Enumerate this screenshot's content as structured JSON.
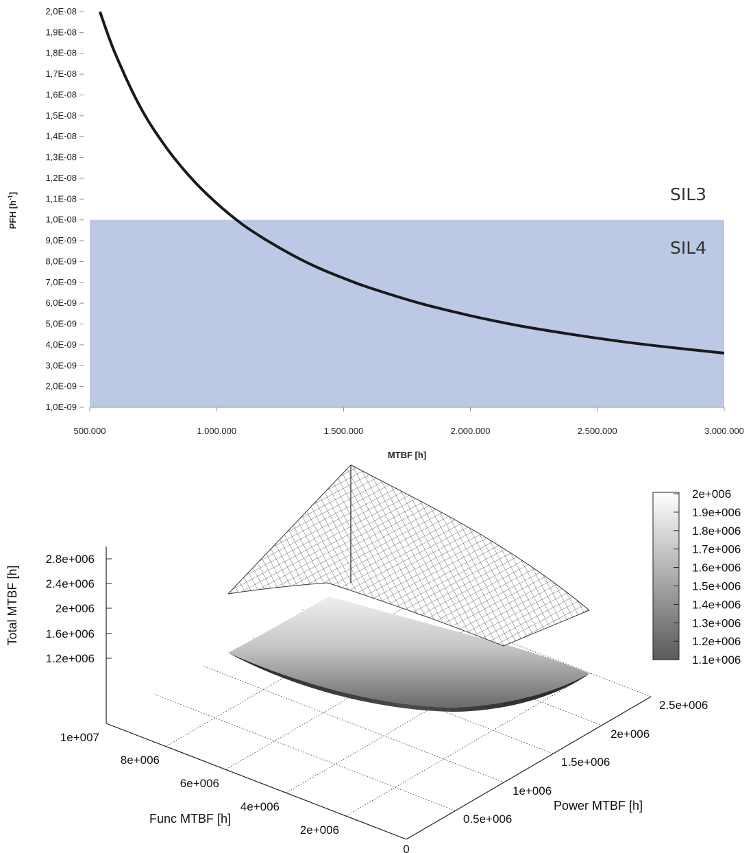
{
  "chart_data": [
    {
      "type": "line",
      "xlabel": "MTBF [h]",
      "ylabel": "PFH [h",
      "ylabel_sup": "-1",
      "ylabel_close": "]",
      "xlim": [
        500000,
        3000000
      ],
      "ylim": [
        1e-09,
        2e-08
      ],
      "x_tick_values": [
        500000,
        1000000,
        1500000,
        2000000,
        2500000,
        3000000
      ],
      "x_tick_labels": [
        "500.000",
        "1.000.000",
        "1.500.000",
        "2.000.000",
        "2.500.000",
        "3.000.000"
      ],
      "y_tick_values": [
        1e-09,
        2e-09,
        3e-09,
        4e-09,
        5e-09,
        6e-09,
        7e-09,
        8e-09,
        9e-09,
        1e-08,
        1.1e-08,
        1.2e-08,
        1.3e-08,
        1.4e-08,
        1.5e-08,
        1.6e-08,
        1.7e-08,
        1.8e-08,
        1.9e-08,
        2e-08
      ],
      "y_tick_labels": [
        "1,0E-09",
        "2,0E-09",
        "3,0E-09",
        "4,0E-09",
        "5,0E-09",
        "6,0E-09",
        "7,0E-09",
        "8,0E-09",
        "9,0E-09",
        "1,0E-08",
        "1,1E-08",
        "1,2E-08",
        "1,3E-08",
        "1,4E-08",
        "1,5E-08",
        "1,6E-08",
        "1,7E-08",
        "1,8E-08",
        "1,9E-08",
        "2,0E-08"
      ],
      "series": [
        {
          "x": [
            540000,
            600000,
            700000,
            800000,
            900000,
            1000000,
            1100000,
            1200000,
            1300000,
            1400000,
            1500000,
            1600000,
            1800000,
            2000000,
            2200000,
            2400000,
            2600000,
            2800000,
            3000000
          ],
          "values": [
            2e-08,
            1.8e-08,
            1.54e-08,
            1.35e-08,
            1.2e-08,
            1.08e-08,
            9.8e-09,
            9e-09,
            8.3e-09,
            7.7e-09,
            7.2e-09,
            6.75e-09,
            6e-09,
            5.4e-09,
            4.9e-09,
            4.5e-09,
            4.15e-09,
            3.86e-09,
            3.6e-09
          ],
          "color": "#1a1a1a"
        }
      ],
      "band": {
        "from": 1e-09,
        "to": 1e-08,
        "color": "#bcc8e4"
      },
      "annotations": [
        "SIL3",
        "SIL4"
      ],
      "grid": false
    },
    {
      "type": "surface",
      "zlabel": "Total MTBF [h]",
      "xlabel": "Func MTBF [h]",
      "ylabel": "Power MTBF [h]",
      "z_ticks": [
        "1.2e+006",
        "1.6e+006",
        "2e+006",
        "2.4e+006",
        "2.8e+006"
      ],
      "func_ticks": [
        "1e+007",
        "8e+006",
        "6e+006",
        "4e+006",
        "2e+006"
      ],
      "power_ticks": [
        "0",
        "0.5e+006",
        "1e+006",
        "1.5e+006",
        "2e+006",
        "2.5e+006"
      ],
      "colorbar_ticks": [
        "2e+006",
        "1.9e+006",
        "1.8e+006",
        "1.7e+006",
        "1.6e+006",
        "1.5e+006",
        "1.4e+006",
        "1.3e+006",
        "1.2e+006",
        "1.1e+006"
      ],
      "colormap": "grayscale",
      "grid": true
    }
  ]
}
